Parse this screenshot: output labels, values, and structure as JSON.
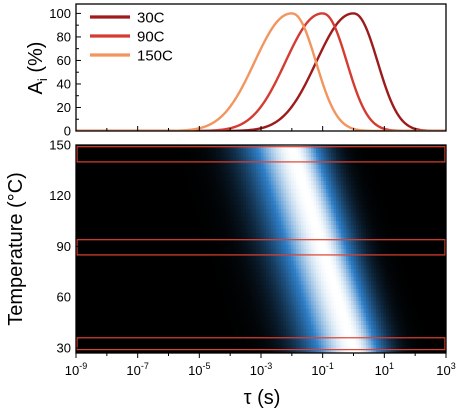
{
  "chart_data": [
    {
      "type": "line",
      "panel": "top",
      "ylabel": "A",
      "ylabel_subscript": "i",
      "ylabel_unit": "(%)",
      "xscale": "log",
      "xlim": [
        1e-09,
        1000
      ],
      "ylim": [
        0,
        108
      ],
      "yticks": [
        "0",
        "20",
        "40",
        "60",
        "80",
        "100"
      ],
      "grid": false,
      "legend": "top-left",
      "series": [
        {
          "name": "30C",
          "color": "#9e1b1b",
          "peak_tau": 1,
          "peak_value": 100
        },
        {
          "name": "90C",
          "color": "#d43c32",
          "peak_tau": 0.1,
          "peak_value": 100
        },
        {
          "name": "150C",
          "color": "#f2955e",
          "peak_tau": 0.01,
          "peak_value": 100
        }
      ]
    },
    {
      "type": "heatmap",
      "panel": "bottom",
      "xlabel": "τ (s)",
      "ylabel": "Temperature (°C)",
      "xscale": "log",
      "xlim": [
        1e-09,
        1000
      ],
      "ylim": [
        27,
        150
      ],
      "yticks": [
        "30",
        "60",
        "90",
        "120",
        "150"
      ],
      "xticks": [
        {
          "base": "10",
          "exp": "-9"
        },
        {
          "base": "10",
          "exp": "-7"
        },
        {
          "base": "10",
          "exp": "-5"
        },
        {
          "base": "10",
          "exp": "-3"
        },
        {
          "base": "10",
          "exp": "-1"
        },
        {
          "base": "10",
          "exp": "1"
        },
        {
          "base": "10",
          "exp": "3"
        }
      ],
      "colormap": [
        "#000000",
        "#2f7fc8",
        "#ffffff"
      ],
      "peak_tau_by_temperature": [
        {
          "temperature": 30,
          "peak_tau": 1
        },
        {
          "temperature": 90,
          "peak_tau": 0.1
        },
        {
          "temperature": 150,
          "peak_tau": 0.01
        }
      ],
      "highlight_color": "#e0412f",
      "highlight_bands": [
        {
          "temperature_from": 29,
          "temperature_to": 36
        },
        {
          "temperature_from": 85,
          "temperature_to": 94
        },
        {
          "temperature_from": 140,
          "temperature_to": 149
        }
      ]
    }
  ]
}
